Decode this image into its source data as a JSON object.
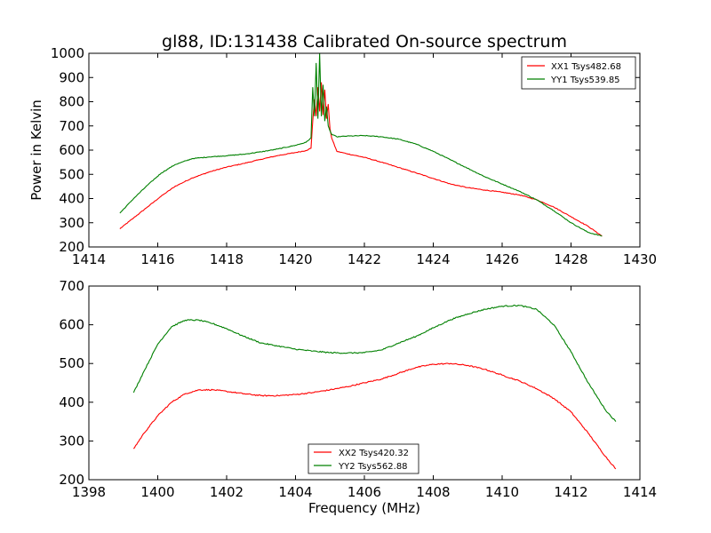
{
  "chart_data": [
    {
      "type": "line",
      "title": "gl88, ID:131438 Calibrated On-source spectrum",
      "xlabel": "",
      "ylabel": "Power in Kelvin",
      "xlim": [
        1414,
        1430
      ],
      "ylim": [
        200,
        1000
      ],
      "xticks": [
        "1414",
        "1416",
        "1418",
        "1420",
        "1422",
        "1424",
        "1426",
        "1428",
        "1430"
      ],
      "yticks": [
        "200",
        "300",
        "400",
        "500",
        "600",
        "700",
        "800",
        "900",
        "1000"
      ],
      "legend_position": "top-right",
      "series": [
        {
          "name": "XX1 Tsys482.68",
          "color": "#ff0000",
          "x": [
            1414.9,
            1415.3,
            1415.7,
            1416.1,
            1416.5,
            1417.0,
            1417.5,
            1418.0,
            1418.5,
            1419.0,
            1419.5,
            1420.0,
            1420.3,
            1420.45,
            1420.5,
            1420.55,
            1420.6,
            1420.65,
            1420.7,
            1420.75,
            1420.8,
            1420.85,
            1420.9,
            1420.95,
            1421.0,
            1421.05,
            1421.2,
            1421.5,
            1422.0,
            1422.5,
            1423.0,
            1423.5,
            1424.0,
            1424.5,
            1425.0,
            1425.5,
            1426.0,
            1426.5,
            1427.0,
            1427.5,
            1428.0,
            1428.5,
            1428.9
          ],
          "y": [
            275,
            320,
            365,
            410,
            450,
            485,
            510,
            530,
            545,
            562,
            578,
            590,
            598,
            608,
            720,
            810,
            740,
            860,
            760,
            880,
            745,
            850,
            730,
            790,
            690,
            650,
            595,
            585,
            570,
            550,
            528,
            506,
            483,
            460,
            445,
            435,
            426,
            415,
            395,
            365,
            325,
            285,
            245
          ]
        },
        {
          "name": "YY1 Tsys539.85",
          "color": "#008000",
          "x": [
            1414.9,
            1415.3,
            1415.7,
            1416.1,
            1416.5,
            1417.0,
            1417.5,
            1418.0,
            1418.5,
            1419.0,
            1419.5,
            1420.0,
            1420.3,
            1420.45,
            1420.5,
            1420.55,
            1420.6,
            1420.65,
            1420.7,
            1420.75,
            1420.8,
            1420.85,
            1420.9,
            1420.95,
            1421.0,
            1421.05,
            1421.2,
            1421.5,
            1422.0,
            1422.5,
            1423.0,
            1423.5,
            1424.0,
            1424.5,
            1425.0,
            1425.5,
            1426.0,
            1426.5,
            1427.0,
            1427.5,
            1428.0,
            1428.5,
            1428.9
          ],
          "y": [
            340,
            400,
            455,
            505,
            540,
            565,
            572,
            577,
            583,
            593,
            605,
            620,
            632,
            650,
            860,
            740,
            960,
            730,
            1000,
            740,
            870,
            720,
            780,
            700,
            680,
            665,
            655,
            658,
            660,
            655,
            645,
            625,
            595,
            560,
            525,
            490,
            460,
            430,
            395,
            350,
            300,
            260,
            245
          ]
        }
      ]
    },
    {
      "type": "line",
      "title": "",
      "xlabel": "Frequency (MHz)",
      "ylabel": "",
      "xlim": [
        1398,
        1414
      ],
      "ylim": [
        200,
        700
      ],
      "xticks": [
        "1398",
        "1400",
        "1402",
        "1404",
        "1406",
        "1408",
        "1410",
        "1412",
        "1414"
      ],
      "yticks": [
        "200",
        "300",
        "400",
        "500",
        "600",
        "700"
      ],
      "legend_position": "bottom-center",
      "series": [
        {
          "name": "XX2 Tsys420.32",
          "color": "#ff0000",
          "x": [
            1399.3,
            1399.6,
            1400.0,
            1400.4,
            1400.8,
            1401.2,
            1401.6,
            1402.0,
            1402.5,
            1403.0,
            1403.5,
            1404.0,
            1404.5,
            1405.0,
            1405.5,
            1406.0,
            1406.5,
            1407.0,
            1407.5,
            1408.0,
            1408.5,
            1409.0,
            1409.5,
            1410.0,
            1410.5,
            1411.0,
            1411.5,
            1412.0,
            1412.5,
            1413.0,
            1413.3
          ],
          "y": [
            280,
            320,
            365,
            400,
            422,
            432,
            432,
            428,
            422,
            417,
            417,
            420,
            425,
            432,
            440,
            450,
            460,
            475,
            490,
            498,
            500,
            495,
            485,
            470,
            455,
            435,
            410,
            375,
            320,
            260,
            228
          ]
        },
        {
          "name": "YY2 Tsys562.88",
          "color": "#008000",
          "x": [
            1399.3,
            1399.6,
            1400.0,
            1400.4,
            1400.8,
            1401.2,
            1401.6,
            1402.0,
            1402.5,
            1403.0,
            1403.5,
            1404.0,
            1404.5,
            1405.0,
            1405.5,
            1406.0,
            1406.5,
            1407.0,
            1407.5,
            1408.0,
            1408.5,
            1409.0,
            1409.5,
            1410.0,
            1410.5,
            1411.0,
            1411.5,
            1412.0,
            1412.5,
            1413.0,
            1413.3
          ],
          "y": [
            425,
            480,
            550,
            595,
            612,
            612,
            603,
            590,
            570,
            553,
            545,
            537,
            532,
            528,
            527,
            528,
            535,
            553,
            570,
            592,
            613,
            628,
            640,
            648,
            650,
            640,
            600,
            530,
            450,
            380,
            350
          ]
        }
      ]
    }
  ]
}
